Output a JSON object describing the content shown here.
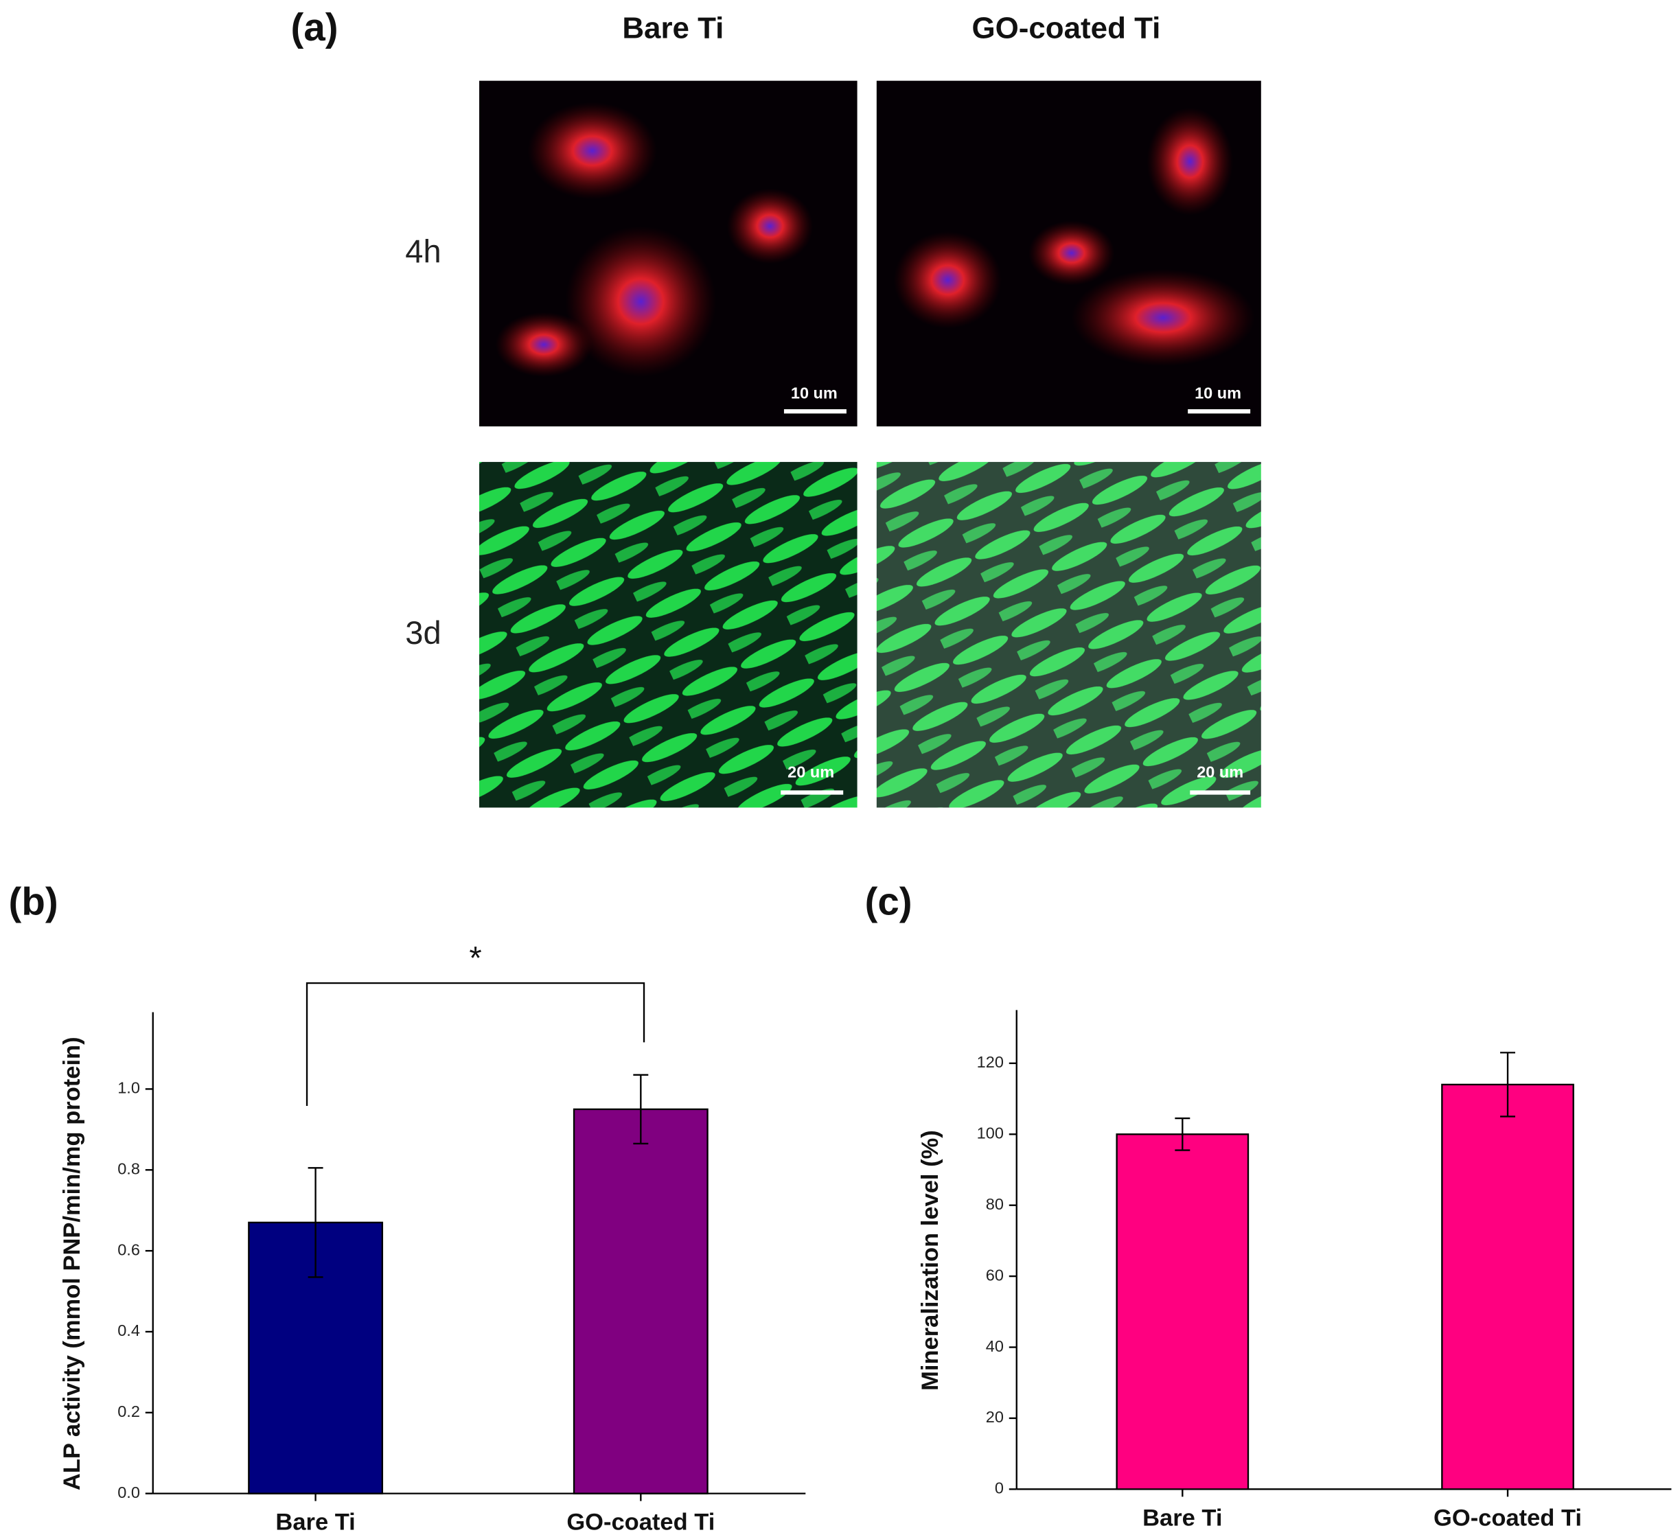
{
  "panel_a": {
    "label": "(a)",
    "columns": [
      "Bare Ti",
      "GO-coated Ti"
    ],
    "rows": [
      "4h",
      "3d"
    ],
    "scale_bars": [
      "10 um",
      "10 um",
      "20 um",
      "20 um"
    ]
  },
  "chart_data": [
    {
      "type": "bar",
      "panel_label": "(b)",
      "ylabel": "ALP activity (mmol PNP/min/mg protein)",
      "categories": [
        "Bare Ti",
        "GO-coated Ti"
      ],
      "values": [
        0.67,
        0.95
      ],
      "errors": [
        0.135,
        0.085
      ],
      "colors": [
        "#000080",
        "#800080"
      ],
      "ylim": [
        0,
        1.19
      ],
      "yticks": [
        {
          "value": 0,
          "label": "0.0"
        },
        0.2,
        0.4,
        0.6,
        0.8,
        {
          "value": 1,
          "label": "1.0"
        }
      ],
      "significance": "*"
    },
    {
      "type": "bar",
      "panel_label": "(c)",
      "ylabel": "Mineralization level (%)",
      "categories": [
        "Bare Ti",
        "GO-coated Ti"
      ],
      "values": [
        100,
        114
      ],
      "errors": [
        4.5,
        9
      ],
      "colors": [
        "#ff0080",
        "#ff0080"
      ],
      "ylim": [
        0,
        135
      ],
      "yticks": [
        0,
        20,
        40,
        60,
        80,
        100,
        120
      ]
    }
  ]
}
